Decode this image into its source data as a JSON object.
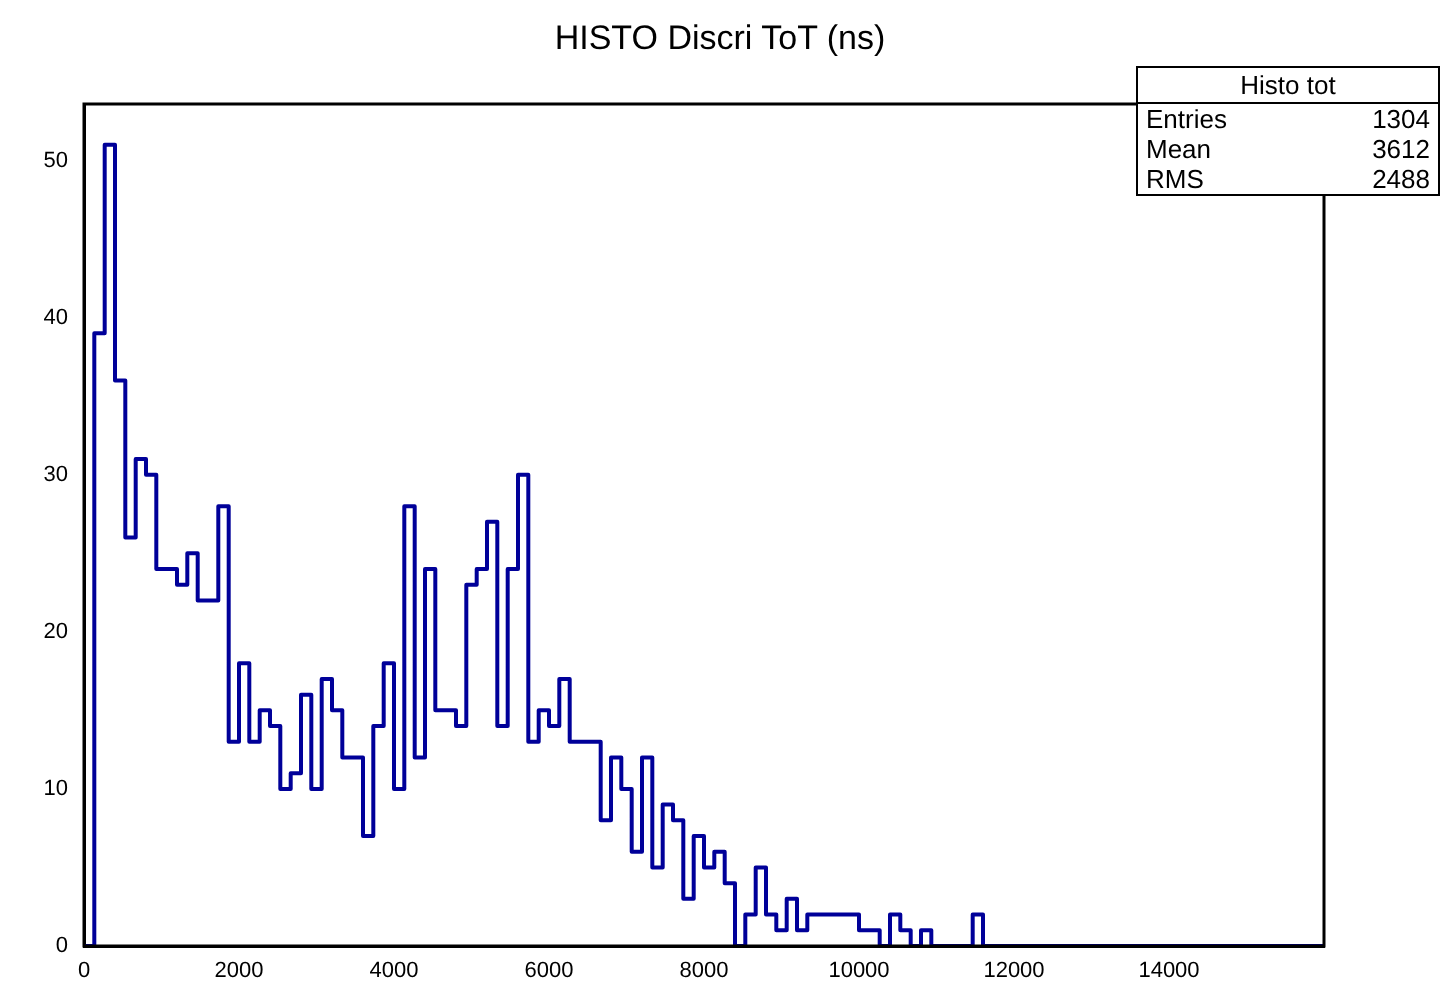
{
  "chart_data": {
    "type": "histogram",
    "title": "HISTO Discri ToT (ns)",
    "bins": [
      0,
      133,
      267,
      400,
      533,
      667,
      800,
      933,
      1067,
      1200,
      1333,
      1467,
      1600,
      1733,
      1867,
      2000,
      2133,
      2267,
      2400,
      2533,
      2667,
      2800,
      2933,
      3067,
      3200,
      3333,
      3467,
      3600,
      3733,
      3867,
      4000,
      4133,
      4267,
      4400,
      4533,
      4667,
      4800,
      4933,
      5067,
      5200,
      5333,
      5467,
      5600,
      5733,
      5867,
      6000,
      6133,
      6267,
      6400,
      6533,
      6667,
      6800,
      6933,
      7067,
      7200,
      7333,
      7467,
      7600,
      7733,
      7867,
      8000,
      8133,
      8267,
      8400,
      8533,
      8667,
      8800,
      8933,
      9067,
      9200,
      9333,
      9467,
      9600,
      9733,
      9867,
      10000,
      10133,
      10267,
      10400,
      10533,
      10667,
      10800,
      10933,
      11067,
      11200,
      11333,
      11467,
      11600,
      11733,
      11867,
      12000,
      12133,
      12267,
      12400,
      12533,
      12667,
      12800,
      12933,
      13067,
      13200,
      13333,
      13467,
      13600,
      13733,
      13867,
      14000,
      14133,
      14267,
      14400,
      14533,
      14667,
      14800,
      14933,
      15067,
      15200,
      15333,
      15467,
      15600,
      15733,
      15867,
      16000
    ],
    "values": [
      0,
      39,
      51,
      36,
      26,
      31,
      30,
      24,
      24,
      23,
      25,
      22,
      22,
      28,
      13,
      18,
      13,
      15,
      14,
      10,
      11,
      16,
      10,
      17,
      15,
      12,
      12,
      7,
      14,
      18,
      10,
      28,
      12,
      24,
      15,
      15,
      14,
      23,
      24,
      27,
      14,
      24,
      30,
      13,
      15,
      14,
      17,
      13,
      13,
      13,
      8,
      12,
      10,
      6,
      12,
      5,
      9,
      8,
      3,
      7,
      5,
      6,
      4,
      0,
      2,
      5,
      2,
      1,
      3,
      1,
      2,
      2,
      2,
      2,
      2,
      1,
      1,
      0,
      2,
      1,
      0,
      1,
      0,
      0,
      0,
      0,
      2,
      0,
      0,
      0,
      0,
      0,
      0,
      0,
      0,
      0,
      0,
      0,
      0,
      0,
      0,
      0,
      0,
      0,
      0,
      0,
      0,
      0,
      0,
      0,
      0,
      0,
      0,
      0,
      0,
      0,
      0,
      0,
      0,
      0
    ],
    "color": "#000099",
    "xlim": [
      0,
      16000
    ],
    "xticks": [
      0,
      2000,
      4000,
      6000,
      8000,
      10000,
      12000,
      14000
    ],
    "ylim": [
      0,
      53.6
    ],
    "yticks": [
      0,
      10,
      20,
      30,
      40,
      50
    ],
    "grid": false,
    "legend": false,
    "annotations": [
      "Histo  tot",
      "Entries 1304",
      "Mean 3612",
      "RMS 2488"
    ]
  }
}
